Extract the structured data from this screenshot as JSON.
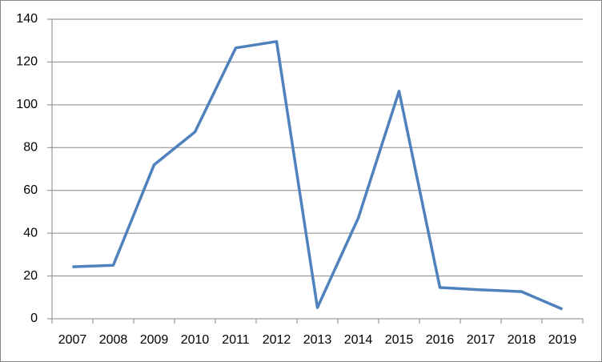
{
  "chart_data": {
    "type": "line",
    "categories": [
      "2007",
      "2008",
      "2009",
      "2010",
      "2011",
      "2012",
      "2013",
      "2014",
      "2015",
      "2016",
      "2017",
      "2018",
      "2019"
    ],
    "values": [
      24.3,
      25,
      72,
      87.3,
      126.6,
      129.6,
      5.2,
      47,
      106.4,
      14.6,
      13.5,
      12.7,
      4.5
    ],
    "color": "#4f81bd",
    "ylim": [
      0,
      140
    ],
    "yticks": [
      0,
      20,
      40,
      60,
      80,
      100,
      120,
      140
    ],
    "grid": true
  }
}
